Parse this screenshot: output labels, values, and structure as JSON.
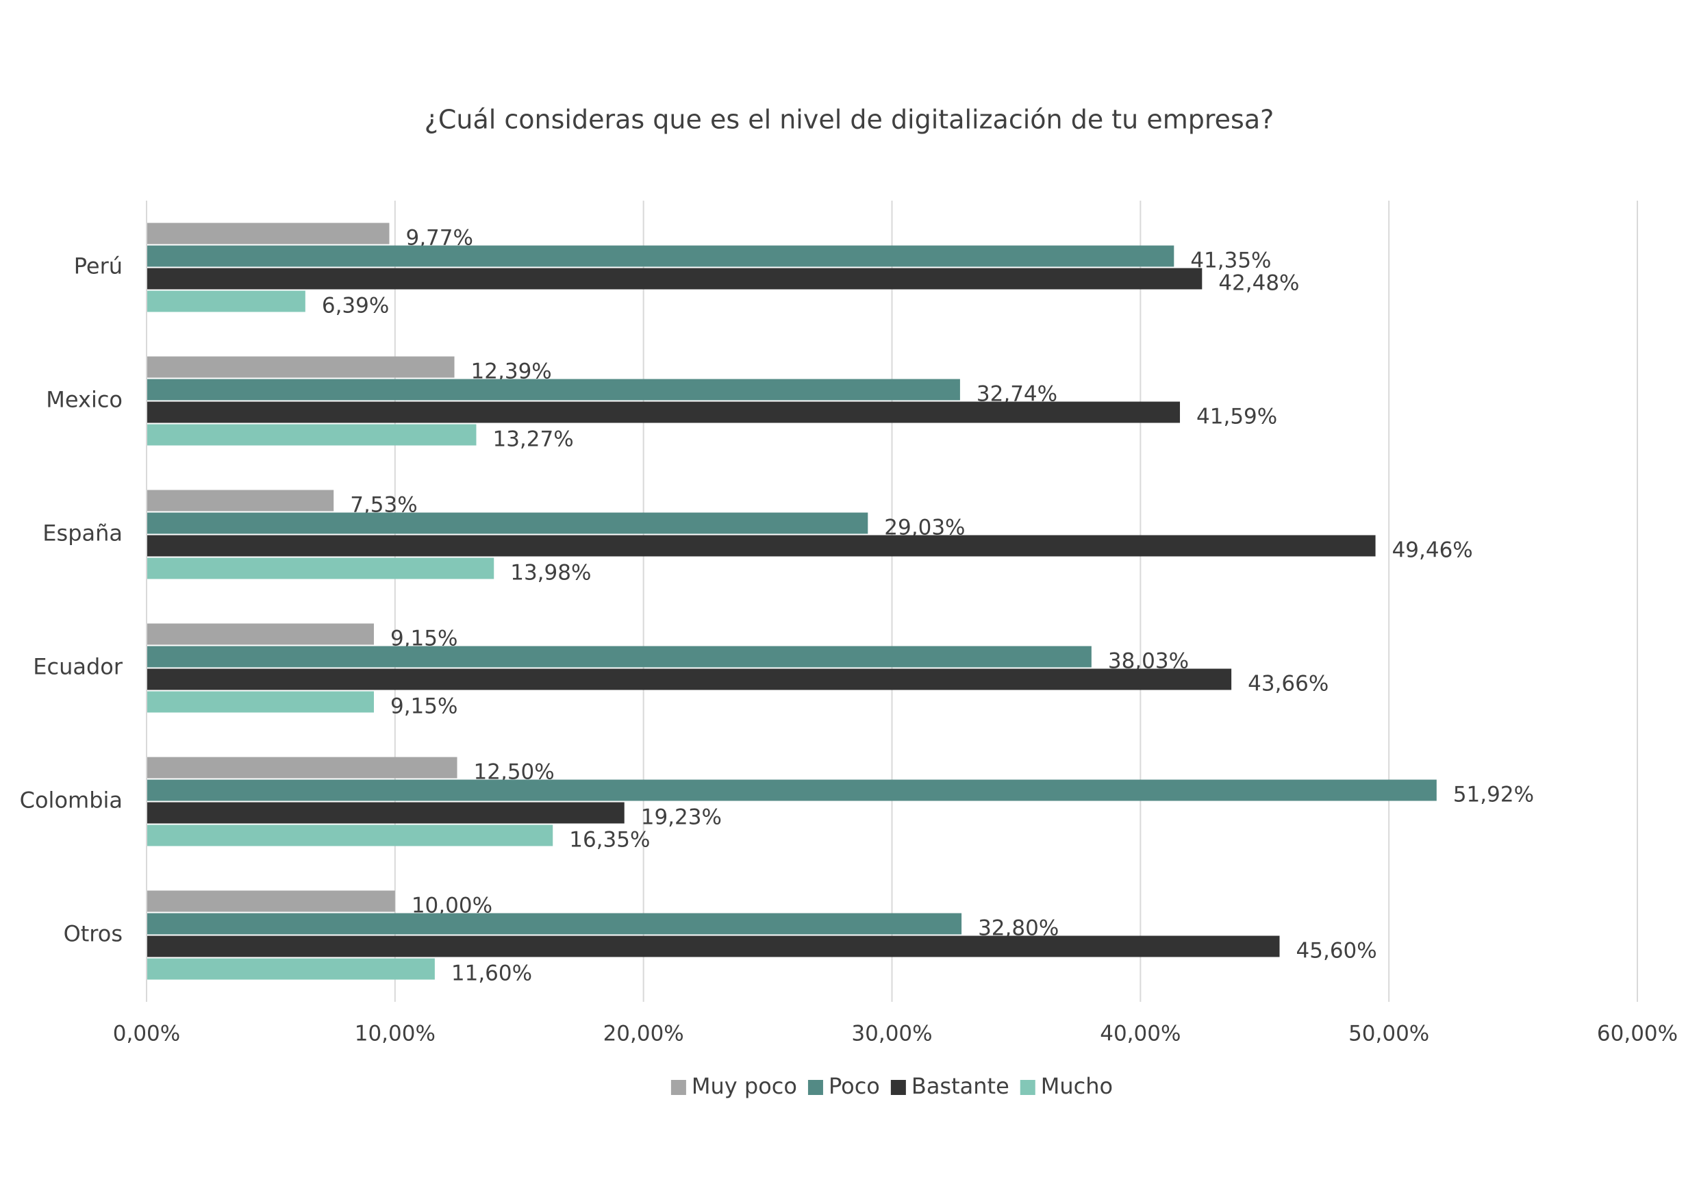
{
  "chart_data": {
    "type": "hbar",
    "title": "¿Cuál consideras que es el nivel de digitalización de tu empresa?",
    "categories": [
      "Perú",
      "Mexico",
      "España",
      "Ecuador",
      "Colombia",
      "Otros"
    ],
    "series": [
      {
        "name": "Muy poco",
        "color": "#a5a5a5",
        "values": [
          9.77,
          12.39,
          7.53,
          9.15,
          12.5,
          10.0
        ],
        "value_labels": [
          "9,77%",
          "12,39%",
          "7,53%",
          "9,15%",
          "12,50%",
          "10,00%"
        ]
      },
      {
        "name": "Poco",
        "color": "#538a85",
        "values": [
          41.35,
          32.74,
          29.03,
          38.03,
          51.92,
          32.8
        ],
        "value_labels": [
          "41,35%",
          "32,74%",
          "29,03%",
          "38,03%",
          "51,92%",
          "32,80%"
        ]
      },
      {
        "name": "Bastante",
        "color": "#333333",
        "values": [
          42.48,
          41.59,
          49.46,
          43.66,
          19.23,
          45.6
        ],
        "value_labels": [
          "42,48%",
          "41,59%",
          "49,46%",
          "43,66%",
          "19,23%",
          "45,60%"
        ]
      },
      {
        "name": "Mucho",
        "color": "#83c7b7",
        "values": [
          6.39,
          13.27,
          13.98,
          9.15,
          16.35,
          11.6
        ],
        "value_labels": [
          "6,39%",
          "13,27%",
          "13,98%",
          "9,15%",
          "16,35%",
          "11,60%"
        ]
      }
    ],
    "xlim": [
      0,
      60
    ],
    "xticks": [
      {
        "value": 0,
        "label": "0,00%"
      },
      {
        "value": 10,
        "label": "10,00%"
      },
      {
        "value": 20,
        "label": "20,00%"
      },
      {
        "value": 30,
        "label": "30,00%"
      },
      {
        "value": 40,
        "label": "40,00%"
      },
      {
        "value": 50,
        "label": "50,00%"
      },
      {
        "value": 60,
        "label": "60,00%"
      }
    ],
    "grid": true,
    "legend": "bottom"
  }
}
